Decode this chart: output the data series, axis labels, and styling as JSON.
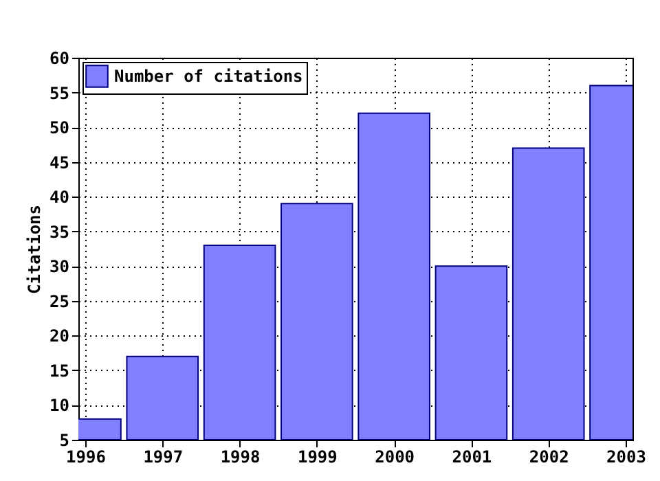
{
  "chart_data": {
    "type": "bar",
    "ylabel": "Citations",
    "x": [
      1996,
      1997,
      1998,
      1999,
      2000,
      2001,
      2002,
      2003
    ],
    "series": [
      {
        "name": "Number of citations",
        "color": "#8080ff",
        "values": [
          8,
          17,
          33,
          39,
          52,
          30,
          47,
          56
        ]
      }
    ],
    "xlim": [
      1996,
      2003
    ],
    "xticks": [
      1996,
      1997,
      1998,
      1999,
      2000,
      2001,
      2002,
      2003
    ],
    "ylim": [
      5,
      60
    ],
    "yticks": [
      5,
      10,
      15,
      20,
      25,
      30,
      35,
      40,
      45,
      50,
      55,
      60
    ],
    "grid": true,
    "legend": "top left"
  }
}
